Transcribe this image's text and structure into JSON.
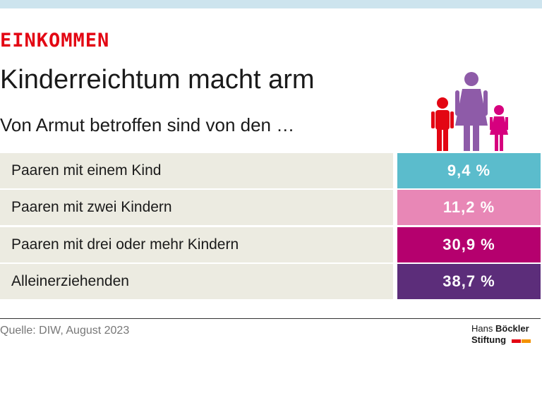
{
  "header": {
    "section": "EINKOMMEN",
    "title": "Kinderreichtum macht arm",
    "subtitle": "Von Armut betroffen sind von den …"
  },
  "table": {
    "rows": [
      [
        "Paaren mit einem Kind",
        "9,4 %"
      ],
      [
        "Paaren mit zwei Kindern",
        "11,2 %"
      ],
      [
        "Paaren mit drei oder mehr Kindern",
        "30,9 %"
      ],
      [
        "Alleinerziehenden",
        "38,7 %"
      ]
    ]
  },
  "footer": {
    "source": "Quelle: DIW, August 2023",
    "logo": [
      "Hans",
      "Böckler",
      "Stiftung"
    ]
  }
}
